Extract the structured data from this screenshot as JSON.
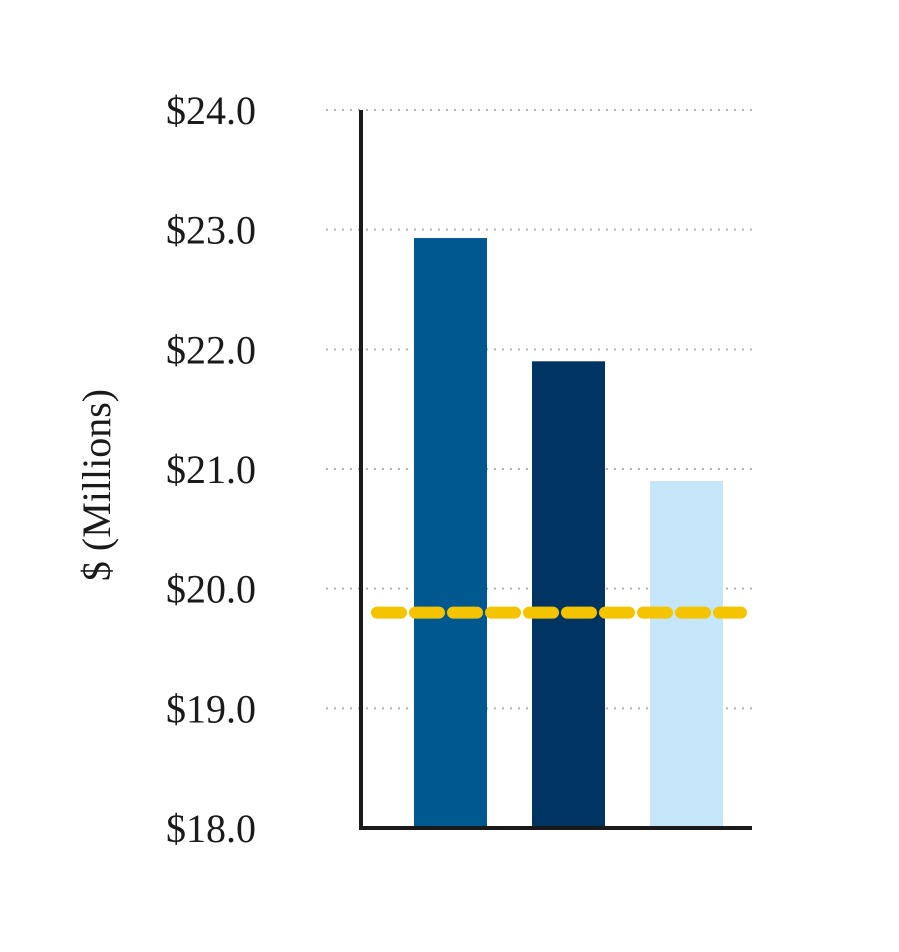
{
  "chart_data": {
    "type": "bar",
    "ylabel": "$ (Millions)",
    "ylim": [
      18,
      24
    ],
    "yticks": [
      {
        "value": 24,
        "label": "$24.0"
      },
      {
        "value": 23,
        "label": "$23.0"
      },
      {
        "value": 22,
        "label": "$22.0"
      },
      {
        "value": 21,
        "label": "$21.0"
      },
      {
        "value": 20,
        "label": "$20.0"
      },
      {
        "value": 19,
        "label": "$19.0"
      },
      {
        "value": 18,
        "label": "$18.0"
      }
    ],
    "grid": true,
    "values": [
      22.93,
      21.9,
      20.9
    ],
    "bar_colors": [
      "#005891",
      "#003462",
      "#c4e6f8"
    ],
    "reference_line": {
      "value": 19.8,
      "color": "#f5c400"
    }
  }
}
